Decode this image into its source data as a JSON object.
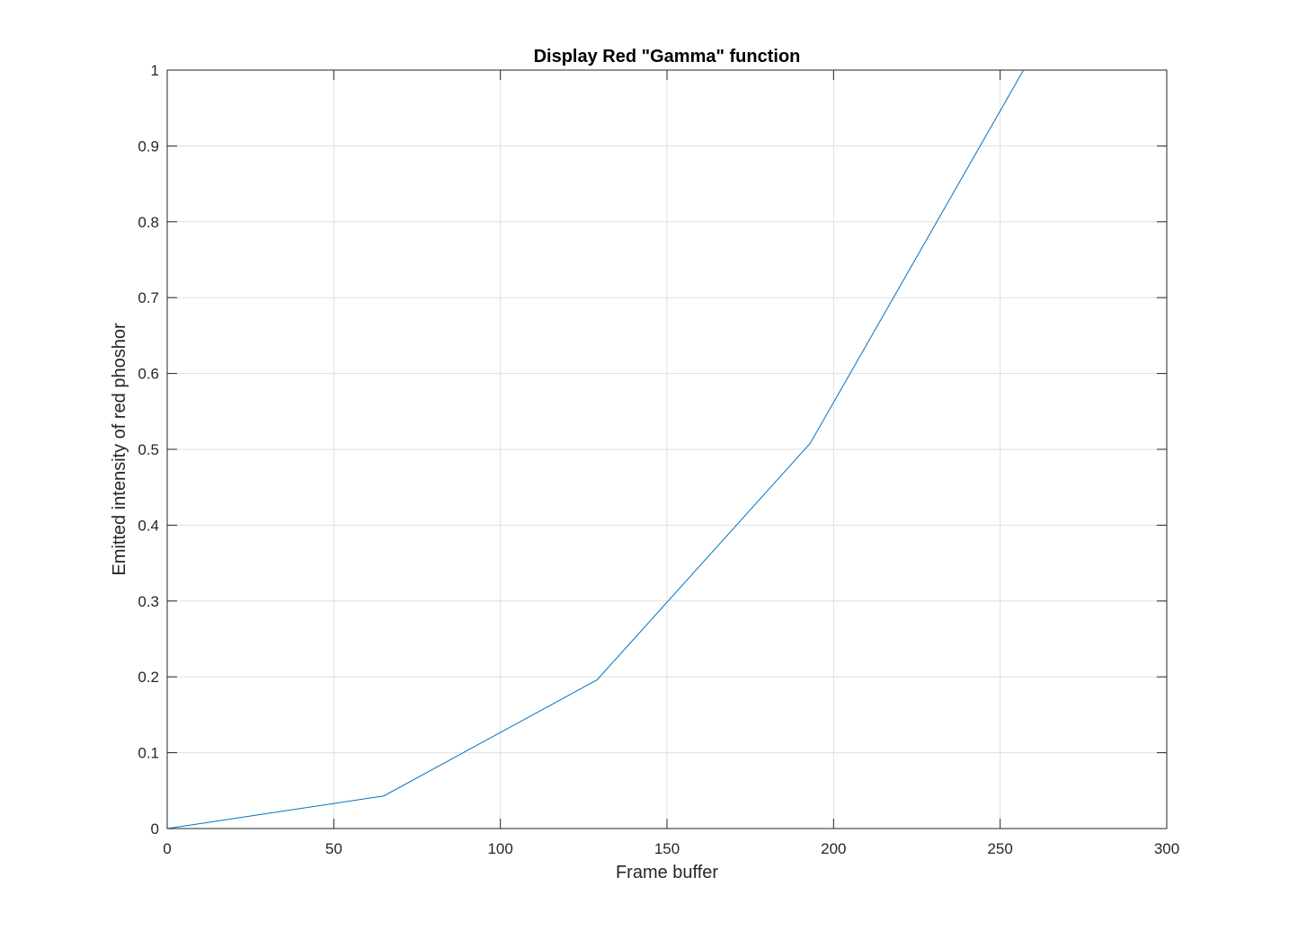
{
  "chart_data": {
    "type": "line",
    "title": "Display Red \"Gamma\" function",
    "xlabel": "Frame buffer",
    "ylabel": "Emitted intensity of red phoshor",
    "xlim": [
      0,
      300
    ],
    "ylim": [
      0,
      1
    ],
    "xticks": [
      0,
      50,
      100,
      150,
      200,
      250,
      300
    ],
    "yticks": [
      0,
      0.1,
      0.2,
      0.3,
      0.4,
      0.5,
      0.6,
      0.7,
      0.8,
      0.9,
      1
    ],
    "xtick_labels": [
      "0",
      "50",
      "100",
      "150",
      "200",
      "250",
      "300"
    ],
    "ytick_labels": [
      "0",
      "0.1",
      "0.2",
      "0.3",
      "0.4",
      "0.5",
      "0.6",
      "0.7",
      "0.8",
      "0.9",
      "1"
    ],
    "grid": true,
    "series": [
      {
        "color": "#0072bd",
        "x": [
          0,
          65,
          129,
          193,
          257
        ],
        "y": [
          0,
          0.043,
          0.196,
          0.508,
          1.0
        ]
      }
    ]
  }
}
